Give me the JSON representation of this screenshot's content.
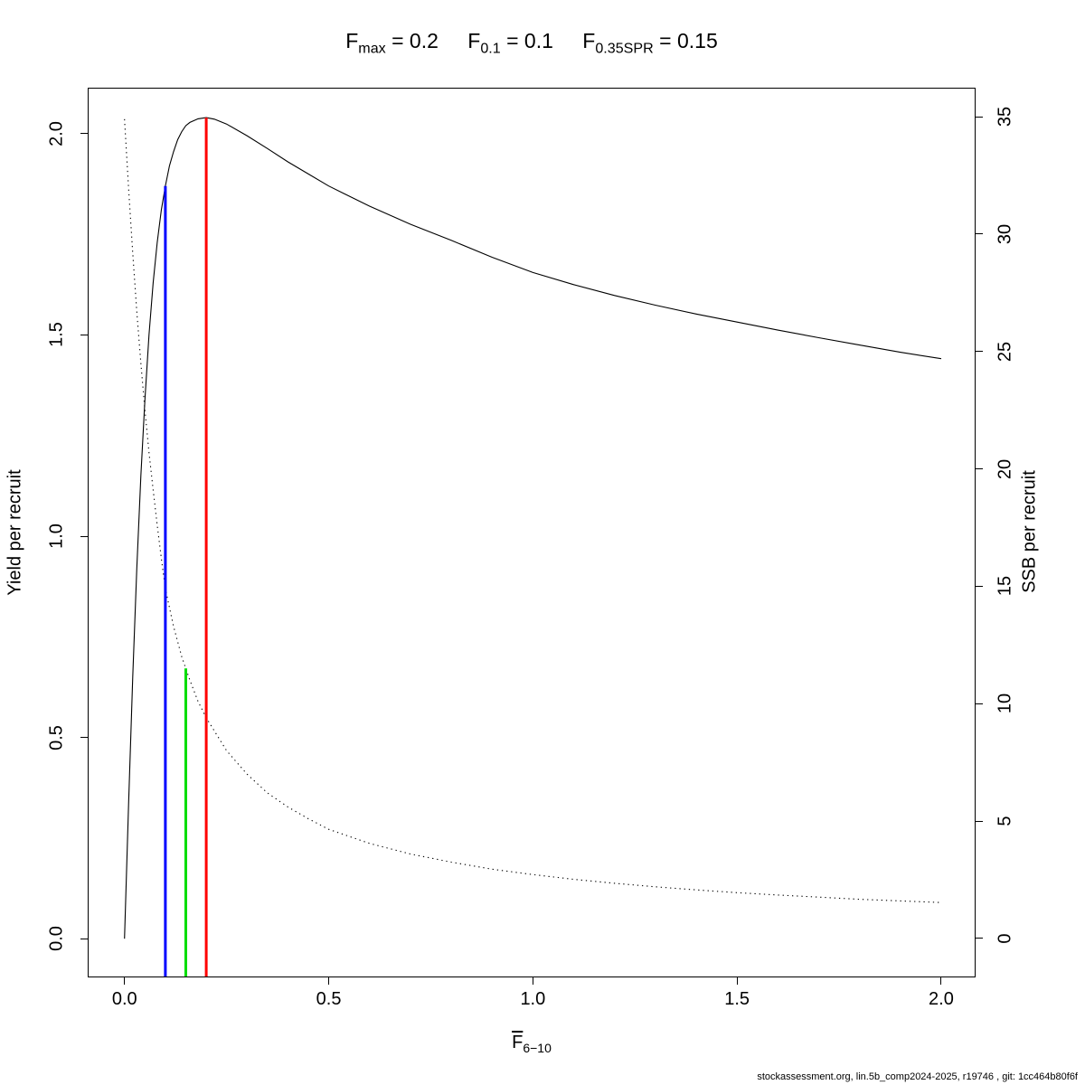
{
  "title": {
    "parts": [
      {
        "base": "F",
        "sub": "max",
        "eq": " = 0.2"
      },
      {
        "base": "F",
        "sub": "0.1",
        "eq": " = 0.1"
      },
      {
        "base": "F",
        "sub": "0.35SPR",
        "eq": " = 0.15"
      }
    ]
  },
  "footer": "stockassessment.org, lin.5b_comp2024-2025, r19746 , git: 1cc464b80f6f",
  "chart_data": {
    "type": "line",
    "title": "Fmax = 0.2, F0.1 = 0.1, F0.35SPR = 0.15",
    "xlabel": "F̄6−10",
    "xlabel_base": "F",
    "xlabel_sub": "6−10",
    "ylabel_left": "Yield per recruit",
    "ylabel_right": "SSB per recruit",
    "xlim": [
      -0.088,
      2.082
    ],
    "ylim_left": [
      -0.094,
      2.112
    ],
    "ylim_right": [
      -1.62,
      36.2
    ],
    "grid": false,
    "legend": "none",
    "x_ticks": {
      "values": [
        0,
        0.5,
        1,
        1.5,
        2
      ],
      "labels": [
        "0.0",
        "0.5",
        "1.0",
        "1.5",
        "2.0"
      ]
    },
    "y_ticks_left": {
      "values": [
        0,
        0.5,
        1,
        1.5,
        2
      ],
      "labels": [
        "0.0",
        "0.5",
        "1.0",
        "1.5",
        "2.0"
      ]
    },
    "y_ticks_right": {
      "values": [
        0,
        5,
        10,
        15,
        20,
        25,
        30,
        35
      ],
      "labels": [
        "0",
        "5",
        "10",
        "15",
        "20",
        "25",
        "30",
        "35"
      ]
    },
    "series": [
      {
        "id": "yield-per-recruit",
        "name": "Yield per recruit",
        "axis": "left",
        "line_style": "solid",
        "color": "#000000",
        "x": [
          0,
          0.01,
          0.02,
          0.03,
          0.04,
          0.05,
          0.06,
          0.07,
          0.08,
          0.09,
          0.1,
          0.11,
          0.12,
          0.13,
          0.14,
          0.15,
          0.16,
          0.18,
          0.2,
          0.22,
          0.25,
          0.3,
          0.35,
          0.4,
          0.45,
          0.5,
          0.6,
          0.7,
          0.8,
          0.9,
          1.0,
          1.1,
          1.2,
          1.3,
          1.4,
          1.5,
          1.6,
          1.7,
          1.8,
          1.9,
          2.0
        ],
        "y": [
          0,
          0.34,
          0.65,
          0.92,
          1.15,
          1.34,
          1.5,
          1.63,
          1.73,
          1.81,
          1.87,
          1.92,
          1.955,
          1.985,
          2.005,
          2.02,
          2.028,
          2.037,
          2.04,
          2.036,
          2.024,
          1.995,
          1.963,
          1.93,
          1.9,
          1.87,
          1.82,
          1.775,
          1.735,
          1.693,
          1.655,
          1.625,
          1.598,
          1.574,
          1.552,
          1.532,
          1.512,
          1.493,
          1.475,
          1.457,
          1.441
        ]
      },
      {
        "id": "ssb-per-recruit",
        "name": "SSB per recruit",
        "axis": "right",
        "line_style": "dotted",
        "color": "#000000",
        "x": [
          0,
          0.01,
          0.02,
          0.03,
          0.04,
          0.05,
          0.06,
          0.07,
          0.08,
          0.09,
          0.1,
          0.12,
          0.14,
          0.15,
          0.16,
          0.18,
          0.2,
          0.25,
          0.3,
          0.35,
          0.4,
          0.45,
          0.5,
          0.6,
          0.7,
          0.8,
          0.9,
          1.0,
          1.1,
          1.2,
          1.3,
          1.4,
          1.5,
          1.6,
          1.7,
          1.8,
          1.9,
          2.0
        ],
        "y": [
          34.9,
          31.9,
          29.2,
          26.7,
          24.5,
          22.5,
          20.7,
          19.1,
          17.6,
          16.2,
          14.9,
          13.3,
          12.0,
          11.5,
          11.0,
          10.1,
          9.4,
          8.0,
          7.0,
          6.2,
          5.6,
          5.1,
          4.65,
          4.05,
          3.6,
          3.25,
          2.95,
          2.72,
          2.52,
          2.35,
          2.2,
          2.07,
          1.95,
          1.85,
          1.76,
          1.67,
          1.6,
          1.53
        ]
      }
    ],
    "reference_lines": [
      {
        "id": "f01",
        "name": "F0.1 = 0.1",
        "x": 0.1,
        "y_top": 1.87,
        "axis": "left",
        "color": "#0000ff"
      },
      {
        "id": "f035spr",
        "name": "F0.35SPR = 0.15",
        "x": 0.15,
        "y_top": 11.5,
        "axis": "right",
        "color": "#00dd00"
      },
      {
        "id": "fmax",
        "name": "Fmax = 0.2",
        "x": 0.2,
        "y_top": 2.04,
        "axis": "left",
        "color": "#ff0000"
      }
    ]
  }
}
